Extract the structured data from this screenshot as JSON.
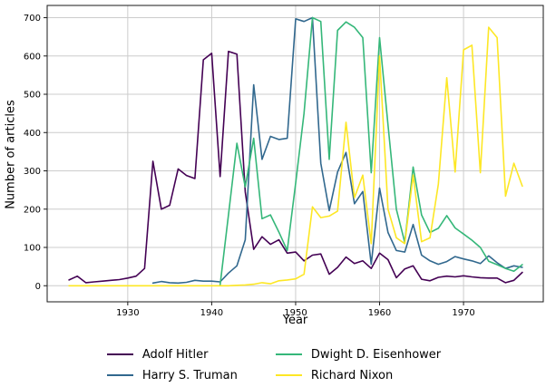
{
  "figure": {
    "background": "#ffffff",
    "grid_color": "#cccccc",
    "spine_color": "#1a1a1a",
    "tick_font_size": 10,
    "xlabel": "Year",
    "ylabel": "Number of articles"
  },
  "chart_data": {
    "type": "line",
    "title": "",
    "xlabel": "Year",
    "ylabel": "Number of articles",
    "xlim": [
      1920.4,
      1979.5
    ],
    "ylim": [
      -42,
      732
    ],
    "x_ticks": [
      1930,
      1940,
      1950,
      1960,
      1970
    ],
    "y_ticks": [
      0,
      100,
      200,
      300,
      400,
      500,
      600,
      700
    ],
    "grid": true,
    "legend_position": "bottom-center",
    "legend_columns": 2,
    "series": [
      {
        "name": "Adolf Hitler",
        "color": "#440154",
        "x_start": 1923,
        "values": [
          15,
          25,
          8,
          10,
          12,
          14,
          16,
          20,
          25,
          45,
          325,
          200,
          210,
          305,
          288,
          280,
          590,
          607,
          285,
          612,
          605,
          245,
          95,
          128,
          108,
          120,
          85,
          88,
          65,
          80,
          83,
          30,
          48,
          75,
          58,
          65,
          45,
          85,
          68,
          21,
          44,
          52,
          17,
          13,
          22,
          25,
          23,
          26,
          23,
          21,
          20,
          20,
          8,
          14,
          35
        ]
      },
      {
        "name": "Harry S. Truman",
        "color": "#31688e",
        "x_start": 1933,
        "values": [
          7,
          11,
          8,
          7,
          9,
          14,
          12,
          12,
          10,
          33,
          52,
          120,
          525,
          330,
          390,
          382,
          385,
          697,
          690,
          700,
          320,
          196,
          297,
          348,
          214,
          246,
          56,
          255,
          139,
          92,
          88,
          160,
          80,
          65,
          56,
          63,
          76,
          70,
          65,
          58,
          78,
          60,
          45,
          52,
          48
        ]
      },
      {
        "name": "Dwight D. Eisenhower",
        "color": "#35b779",
        "x_start": 1941,
        "values": [
          2,
          185,
          372,
          258,
          385,
          175,
          185,
          140,
          92,
          268,
          450,
          700,
          690,
          330,
          667,
          689,
          675,
          648,
          295,
          648,
          420,
          200,
          113,
          310,
          185,
          139,
          150,
          183,
          151,
          135,
          119,
          100,
          64,
          55,
          45,
          38,
          55
        ]
      },
      {
        "name": "Richard Nixon",
        "color": "#fde725",
        "x_start": 1923,
        "values": [
          0,
          0,
          0,
          0,
          0,
          0,
          0,
          0,
          0,
          0,
          0,
          0,
          0,
          0,
          0,
          0,
          0,
          0,
          0,
          0,
          1,
          2,
          4,
          8,
          5,
          13,
          15,
          18,
          30,
          206,
          178,
          182,
          195,
          427,
          230,
          289,
          110,
          600,
          200,
          125,
          110,
          289,
          115,
          125,
          265,
          543,
          297,
          616,
          628,
          295,
          675,
          648,
          234,
          320,
          260
        ]
      }
    ]
  }
}
